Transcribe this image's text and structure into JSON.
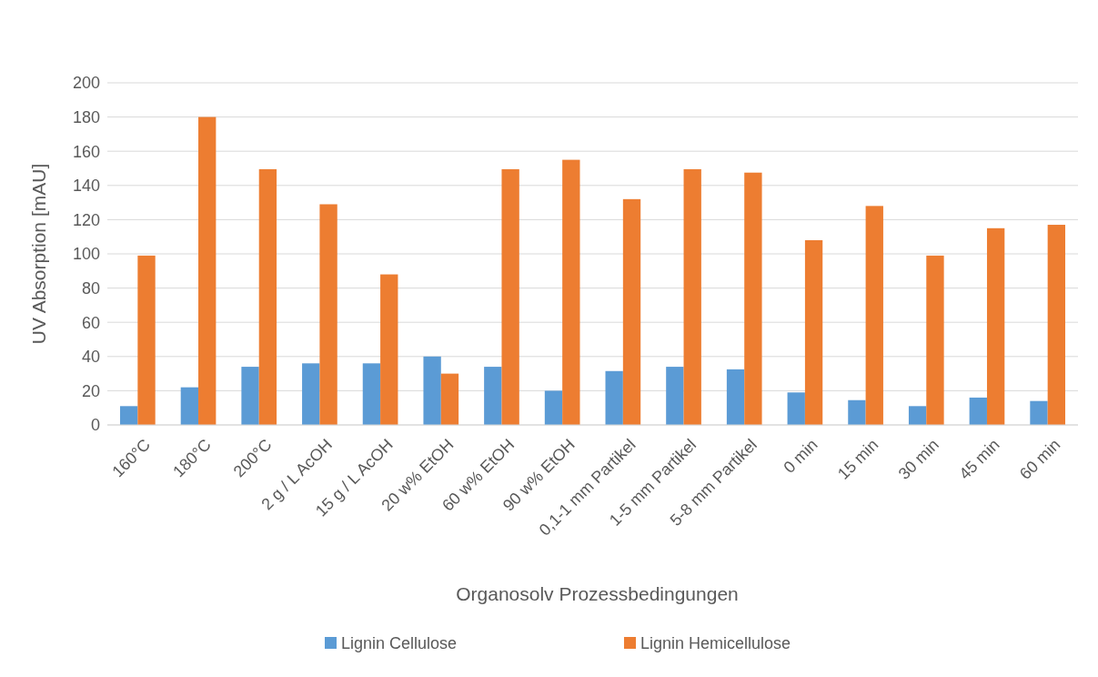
{
  "chart_data": {
    "type": "bar",
    "xlabel": "Organosolv Prozessbedingungen",
    "ylabel": "UV Absorption [mAU]",
    "categories": [
      "160°C",
      "180°C",
      "200°C",
      "2 g / L  AcOH",
      "15 g / L  AcOH",
      "20 w% EtOH",
      "60 w% EtOH",
      "90 w% EtOH",
      "0,1-1 mm Partikel",
      "1-5 mm Partikel",
      "5-8 mm Partikel",
      "0 min",
      "15 min",
      "30 min",
      "45 min",
      "60 min"
    ],
    "series": [
      {
        "name": "Lignin Cellulose",
        "color": "#5b9bd5",
        "values": [
          11,
          22,
          34,
          36,
          36,
          40,
          34,
          20,
          31.5,
          34,
          32.5,
          19,
          14.5,
          11,
          16,
          14
        ]
      },
      {
        "name": "Lignin Hemicellulose",
        "color": "#ed7d31",
        "values": [
          99,
          180,
          149.5,
          129,
          88,
          30,
          149.5,
          155,
          132,
          149.5,
          147.5,
          108,
          128,
          99,
          115,
          117
        ]
      }
    ],
    "ylim": [
      0,
      200
    ],
    "yticks": [
      0,
      20,
      40,
      60,
      80,
      100,
      120,
      140,
      160,
      180,
      200
    ],
    "grid": "y",
    "legend": "bottom"
  }
}
